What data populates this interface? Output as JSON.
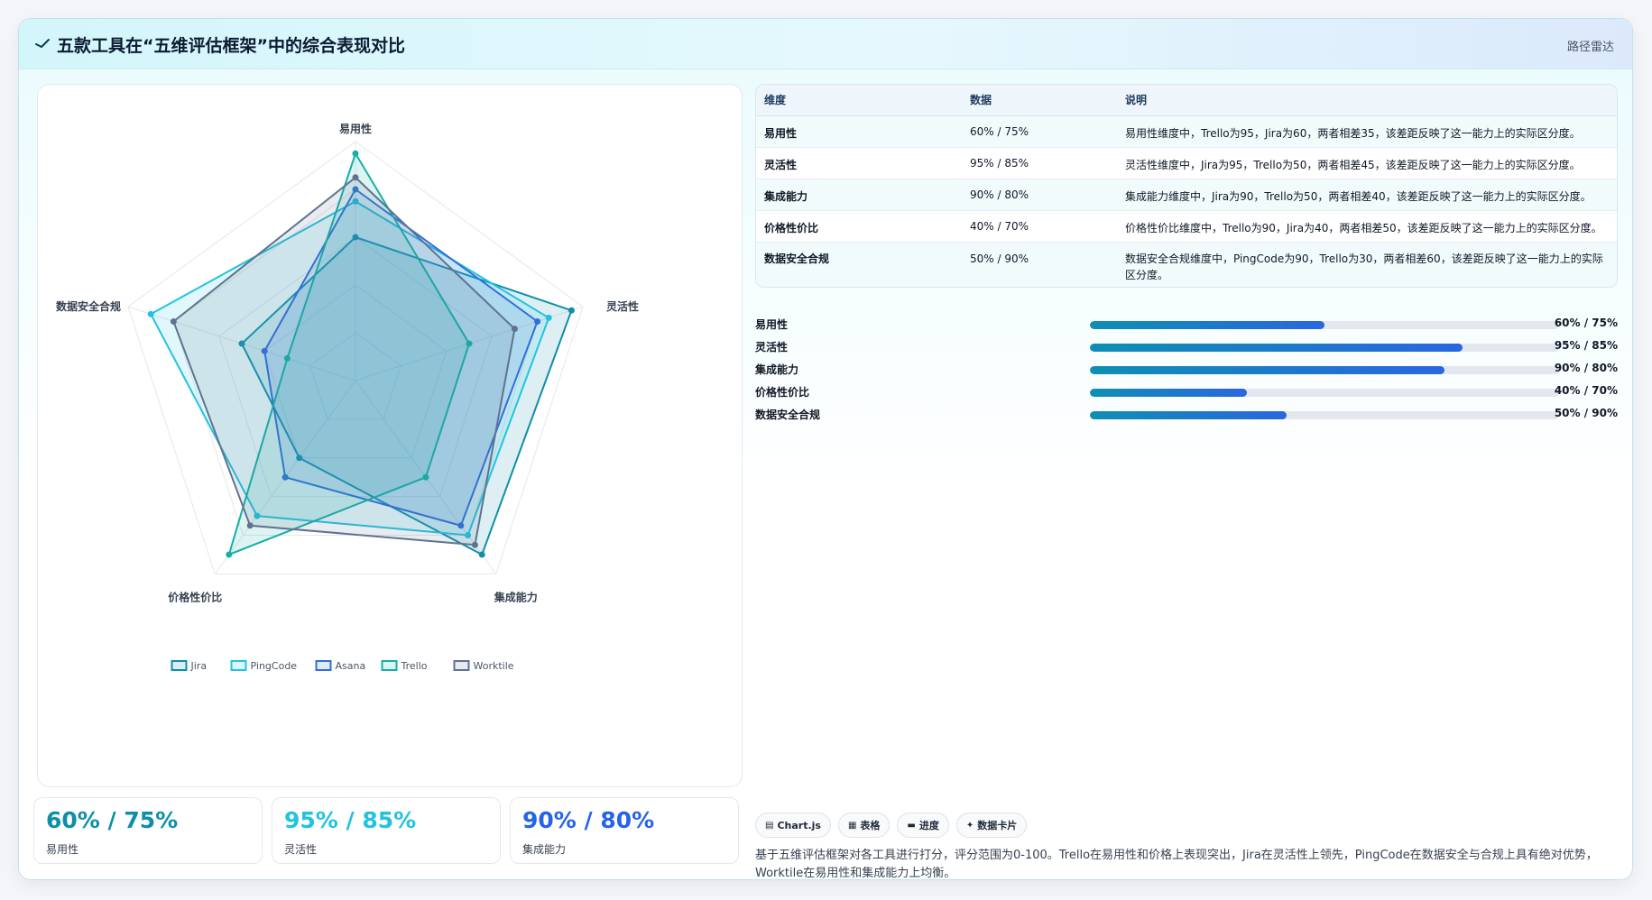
{
  "header": {
    "title": "五款工具在“五维评估框架”中的综合表现对比",
    "tag": "路径雷达",
    "icon": "radar-sweep-icon"
  },
  "chart_data": {
    "type": "radar",
    "axes": [
      "易用性",
      "灵活性",
      "集成能力",
      "价格性价比",
      "数据安全合规"
    ],
    "scale": [
      0,
      100
    ],
    "grid_levels": [
      20,
      40,
      60,
      80,
      100
    ],
    "legend_position": "bottom",
    "series": [
      {
        "name": "Jira",
        "values": [
          60,
          95,
          90,
          40,
          50
        ],
        "color": "#0e8fa8"
      },
      {
        "name": "PingCode",
        "values": [
          75,
          85,
          80,
          70,
          90
        ],
        "color": "#22c3e0"
      },
      {
        "name": "Asana",
        "values": [
          80,
          80,
          75,
          50,
          40
        ],
        "color": "#2f6fdc"
      },
      {
        "name": "Trello",
        "values": [
          95,
          50,
          50,
          90,
          30
        ],
        "color": "#14b0a6"
      },
      {
        "name": "Worktile",
        "values": [
          85,
          70,
          85,
          75,
          80
        ],
        "color": "#5f7390"
      }
    ]
  },
  "kpis": [
    {
      "value": "60% / 75%",
      "label": "易用性",
      "color": "#0e8fa8"
    },
    {
      "value": "95% / 85%",
      "label": "灵活性",
      "color": "#22c3e0"
    },
    {
      "value": "90% / 80%",
      "label": "集成能力",
      "color": "#2563eb"
    }
  ],
  "table": {
    "headers": [
      "维度",
      "数据",
      "说明"
    ],
    "rows": [
      {
        "dim": "易用性",
        "data": "60% / 75%",
        "desc": "易用性维度中，Trello为95，Jira为60，两者相差35，该差距反映了这一能力上的实际区分度。"
      },
      {
        "dim": "灵活性",
        "data": "95% / 85%",
        "desc": "灵活性维度中，Jira为95，Trello为50，两者相差45，该差距反映了这一能力上的实际区分度。"
      },
      {
        "dim": "集成能力",
        "data": "90% / 80%",
        "desc": "集成能力维度中，Jira为90，Trello为50，两者相差40，该差距反映了这一能力上的实际区分度。"
      },
      {
        "dim": "价格性价比",
        "data": "40% / 70%",
        "desc": "价格性价比维度中，Trello为90，Jira为40，两者相差50，该差距反映了这一能力上的实际区分度。"
      },
      {
        "dim": "数据安全合规",
        "data": "50% / 90%",
        "desc": "数据安全合规维度中，PingCode为90，Trello为30，两者相差60，该差距反映了这一能力上的实际区分度。"
      }
    ]
  },
  "progress": [
    {
      "label": "易用性",
      "value": "60% / 75%",
      "fill": 0.5
    },
    {
      "label": "灵活性",
      "value": "95% / 85%",
      "fill": 0.795
    },
    {
      "label": "集成能力",
      "value": "90% / 80%",
      "fill": 0.755
    },
    {
      "label": "价格性价比",
      "value": "40% / 70%",
      "fill": 0.335
    },
    {
      "label": "数据安全合规",
      "value": "50% / 90%",
      "fill": 0.42
    }
  ],
  "chips": [
    {
      "icon": "chart-icon",
      "glyph": "▤",
      "label": "Chart.js"
    },
    {
      "icon": "table-icon",
      "glyph": "▦",
      "label": "表格"
    },
    {
      "icon": "progress-icon",
      "glyph": "▬",
      "label": "进度"
    },
    {
      "icon": "card-icon",
      "glyph": "✦",
      "label": "数据卡片"
    }
  ],
  "summary": "基于五维评估框架对各工具进行打分，评分范围为0-100。Trello在易用性和价格上表现突出，Jira在灵活性上领先，PingCode在数据安全与合规上具有绝对优势，Worktile在易用性和集成能力上均衡。"
}
